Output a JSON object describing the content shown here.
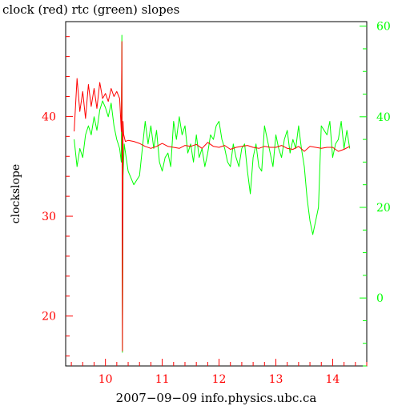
{
  "chart_data": {
    "type": "line",
    "title": "clock (red) rtc (green) slopes",
    "xlabel": "2007−09−09 info.physics.ubc.ca",
    "ylabel": "clockslope",
    "xlim": [
      9.3,
      14.6
    ],
    "x_ticks": [
      10,
      11,
      12,
      13,
      14
    ],
    "y_left": {
      "ylim": [
        15,
        49.5
      ],
      "ticks": [
        20,
        30,
        40
      ],
      "color": "#ff0000"
    },
    "y_right": {
      "ylim": [
        -15,
        61
      ],
      "ticks": [
        0,
        20,
        40,
        60
      ],
      "color": "#00ff00"
    },
    "grid": false,
    "series": [
      {
        "name": "clock",
        "color": "#ff0000",
        "axis": "left",
        "x": [
          9.45,
          9.5,
          9.55,
          9.6,
          9.65,
          9.7,
          9.75,
          9.8,
          9.85,
          9.9,
          9.95,
          10.0,
          10.05,
          10.1,
          10.15,
          10.2,
          10.25,
          10.28,
          10.29,
          10.3,
          10.31,
          10.32,
          10.35,
          10.4,
          10.5,
          10.6,
          10.7,
          10.8,
          10.9,
          11.0,
          11.1,
          11.2,
          11.3,
          11.4,
          11.5,
          11.6,
          11.7,
          11.8,
          11.9,
          12.0,
          12.1,
          12.2,
          12.3,
          12.4,
          12.5,
          12.6,
          12.7,
          12.8,
          12.9,
          13.0,
          13.1,
          13.2,
          13.3,
          13.4,
          13.5,
          13.6,
          13.7,
          13.8,
          13.9,
          14.0,
          14.1,
          14.2,
          14.3
        ],
        "y": [
          38.5,
          43.8,
          40.5,
          42.5,
          39.8,
          43.2,
          41.0,
          42.8,
          40.8,
          43.4,
          41.8,
          42.3,
          41.5,
          42.8,
          42.0,
          42.5,
          41.8,
          38.5,
          47.5,
          16.5,
          39.5,
          38.2,
          37.5,
          37.6,
          37.5,
          37.3,
          37.0,
          36.8,
          37.0,
          37.3,
          37.0,
          36.9,
          36.8,
          37.1,
          37.0,
          37.2,
          36.8,
          37.4,
          37.0,
          36.9,
          37.1,
          36.7,
          36.9,
          37.0,
          37.1,
          36.9,
          36.8,
          37.0,
          36.9,
          36.9,
          37.1,
          36.8,
          36.7,
          37.0,
          36.5,
          37.0,
          36.9,
          36.8,
          36.9,
          36.9,
          36.5,
          36.7,
          37.0
        ]
      },
      {
        "name": "rtc",
        "color": "#00ff00",
        "axis": "right",
        "x": [
          9.45,
          9.5,
          9.55,
          9.6,
          9.65,
          9.7,
          9.75,
          9.8,
          9.85,
          9.9,
          9.95,
          10.0,
          10.05,
          10.1,
          10.15,
          10.2,
          10.25,
          10.28,
          10.29,
          10.3,
          10.31,
          10.33,
          10.4,
          10.5,
          10.6,
          10.7,
          10.75,
          10.8,
          10.85,
          10.9,
          10.95,
          11.0,
          11.05,
          11.1,
          11.15,
          11.2,
          11.25,
          11.3,
          11.35,
          11.4,
          11.45,
          11.5,
          11.55,
          11.6,
          11.65,
          11.7,
          11.75,
          11.8,
          11.85,
          11.9,
          11.95,
          12.0,
          12.05,
          12.1,
          12.15,
          12.2,
          12.25,
          12.3,
          12.35,
          12.4,
          12.45,
          12.5,
          12.55,
          12.6,
          12.65,
          12.7,
          12.75,
          12.8,
          12.85,
          12.9,
          12.95,
          13.0,
          13.05,
          13.1,
          13.15,
          13.2,
          13.25,
          13.3,
          13.35,
          13.4,
          13.45,
          13.5,
          13.55,
          13.6,
          13.65,
          13.7,
          13.75,
          13.8,
          13.85,
          13.9,
          13.95,
          14.0,
          14.05,
          14.1,
          14.15,
          14.2,
          14.25,
          14.3
        ],
        "y": [
          35.0,
          29.0,
          33.0,
          31.0,
          36.0,
          38.0,
          36.0,
          40.0,
          37.0,
          41.5,
          43.5,
          42.0,
          40.0,
          43.0,
          38.0,
          35.0,
          33.0,
          30.0,
          58.0,
          -12.0,
          27.0,
          34.0,
          28.0,
          25.0,
          27.0,
          39.0,
          34.0,
          38.0,
          33.0,
          37.0,
          30.0,
          28.0,
          31.0,
          32.0,
          29.0,
          39.0,
          35.0,
          40.0,
          36.0,
          38.0,
          32.0,
          34.0,
          30.0,
          36.0,
          31.0,
          33.0,
          29.0,
          32.0,
          36.0,
          35.0,
          38.0,
          39.0,
          35.0,
          33.0,
          30.0,
          29.0,
          34.0,
          31.0,
          29.0,
          33.0,
          34.0,
          28.0,
          23.0,
          31.0,
          34.0,
          29.0,
          28.0,
          38.0,
          35.0,
          32.0,
          29.0,
          36.0,
          33.0,
          31.0,
          35.0,
          37.0,
          32.0,
          35.0,
          33.0,
          38.0,
          33.0,
          29.0,
          22.0,
          17.0,
          14.0,
          17.0,
          20.0,
          38.0,
          37.0,
          36.0,
          39.0,
          31.0,
          34.0,
          35.0,
          39.0,
          33.0,
          37.0,
          33.0
        ]
      }
    ]
  }
}
